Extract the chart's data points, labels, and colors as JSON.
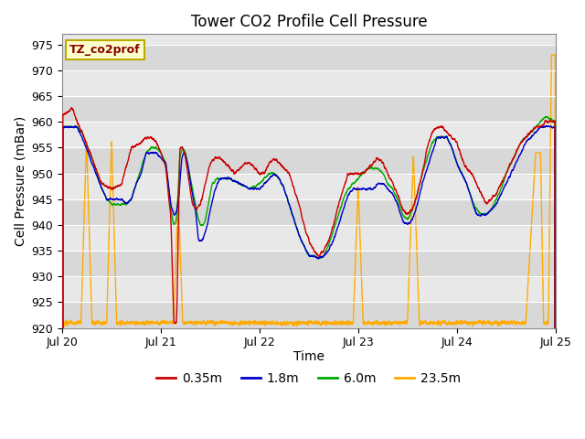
{
  "title": "Tower CO2 Profile Cell Pressure",
  "ylabel": "Cell Pressure (mBar)",
  "xlabel": "Time",
  "annotation": "TZ_co2prof",
  "ylim": [
    920,
    977
  ],
  "yticks": [
    920,
    925,
    930,
    935,
    940,
    945,
    950,
    955,
    960,
    965,
    970,
    975
  ],
  "xtick_labels": [
    "Jul 20",
    "Jul 21",
    "Jul 22",
    "Jul 23",
    "Jul 24",
    "Jul 25"
  ],
  "xtick_positions": [
    0.0,
    1.0,
    2.0,
    3.0,
    4.0,
    5.0
  ],
  "legend_labels": [
    "0.35m",
    "1.8m",
    "6.0m",
    "23.5m"
  ],
  "line_colors": [
    "#cc0000",
    "#0000cc",
    "#00aa00",
    "#ffaa00"
  ],
  "plot_bg_color": "#e8e8e8",
  "title_fontsize": 12,
  "axis_label_fontsize": 10,
  "tick_fontsize": 9,
  "legend_fontsize": 10,
  "annotation_facecolor": "#ffffcc",
  "annotation_edgecolor": "#bbaa00",
  "annotation_textcolor": "#880000"
}
